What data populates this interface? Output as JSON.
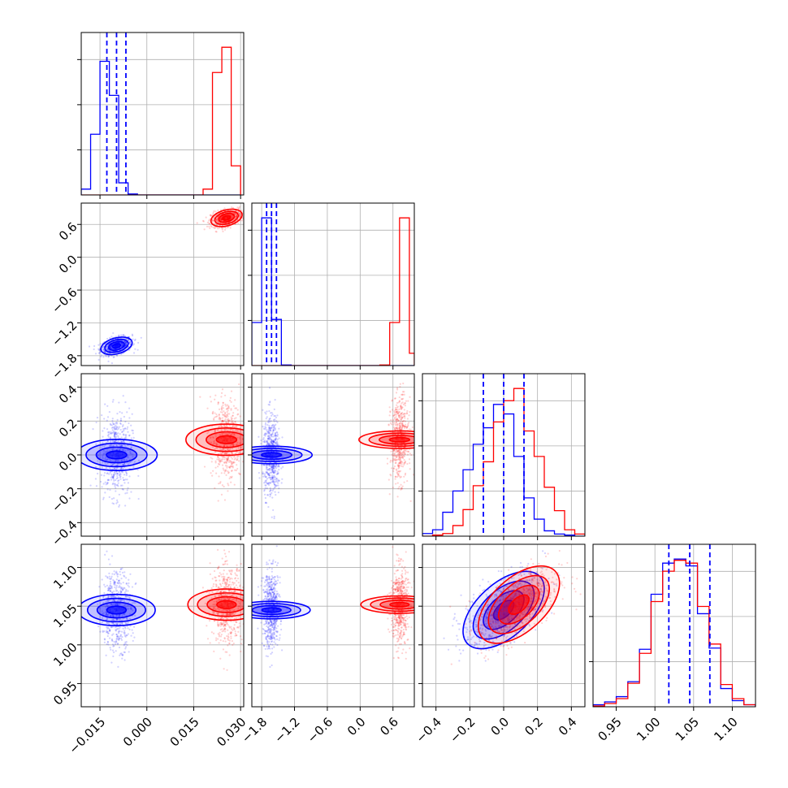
{
  "chart_data": {
    "type": "corner",
    "grid": true,
    "series": [
      {
        "color": "#0000ff"
      },
      {
        "color": "#ff0000"
      }
    ],
    "params": [
      {
        "range": [
          -0.021,
          0.031
        ],
        "ticks": [
          "−0.015",
          "0.000",
          "0.015",
          "0.030"
        ],
        "tick_values": [
          -0.015,
          0.0,
          0.015,
          0.03
        ]
      },
      {
        "range": [
          -1.98,
          0.99
        ],
        "ticks": [
          "−1.8",
          "−1.2",
          "−0.6",
          "0.0",
          "0.6"
        ],
        "tick_values": [
          -1.8,
          -1.2,
          -0.6,
          0.0,
          0.6
        ]
      },
      {
        "range": [
          -0.48,
          0.48
        ],
        "ticks": [
          "−0.4",
          "−0.2",
          "0.0",
          "0.2",
          "0.4"
        ],
        "tick_values": [
          -0.4,
          -0.2,
          0.0,
          0.2,
          0.4
        ]
      },
      {
        "range": [
          0.92,
          1.13
        ],
        "ticks": [
          "0.95",
          "1.00",
          "1.05",
          "1.10"
        ],
        "tick_values": [
          0.95,
          1.0,
          1.05,
          1.1
        ]
      }
    ],
    "quantile_lines": [
      [
        -0.0128,
        -0.0097,
        -0.0067
      ],
      [
        -1.71,
        -1.62,
        -1.53
      ],
      [
        -0.12,
        0.0,
        0.12
      ],
      [
        1.018,
        1.045,
        1.071
      ]
    ],
    "histograms": [
      {
        "edges": [
          -0.021,
          -0.018,
          -0.015,
          -0.012,
          -0.009,
          -0.006,
          -0.003,
          0.0,
          0.003,
          0.006,
          0.009,
          0.012,
          0.015,
          0.018,
          0.021,
          0.024,
          0.027,
          0.03
        ],
        "counts": {
          "blue": [
            0.12,
            1.25,
            2.75,
            2.05,
            0.25,
            0.02,
            0,
            0,
            0,
            0,
            0,
            0,
            0,
            0,
            0,
            0,
            0
          ],
          "red": [
            0,
            0,
            0,
            0,
            0,
            0,
            0,
            0,
            0,
            0,
            0,
            0,
            0,
            0.12,
            2.52,
            3.04,
            0.6
          ]
        }
      },
      {
        "edges": [
          -1.98,
          -1.8,
          -1.62,
          -1.44,
          -1.26,
          -1.08,
          -0.9,
          -0.72,
          -0.54,
          -0.36,
          -0.18,
          0.0,
          0.18,
          0.36,
          0.54,
          0.72,
          0.9,
          0.99
        ],
        "counts": {
          "blue": [
            1.4,
            4.8,
            1.5,
            0.02,
            0,
            0,
            0,
            0,
            0,
            0,
            0,
            0,
            0,
            0,
            0,
            0,
            0
          ],
          "red": [
            0,
            0,
            0,
            0,
            0,
            0,
            0,
            0,
            0,
            0,
            0,
            0,
            0,
            0.02,
            1.4,
            4.8,
            0.4
          ]
        }
      },
      {
        "edges": [
          -0.48,
          -0.42,
          -0.36,
          -0.3,
          -0.24,
          -0.18,
          -0.12,
          -0.06,
          0.0,
          0.06,
          0.12,
          0.18,
          0.24,
          0.3,
          0.36,
          0.42,
          0.48
        ],
        "counts": {
          "blue": [
            0.05,
            0.12,
            0.45,
            0.85,
            1.25,
            1.73,
            2.04,
            2.48,
            2.3,
            1.5,
            0.72,
            0.32,
            0.1,
            0.04,
            0.02,
            0
          ],
          "red": [
            0,
            0.02,
            0.05,
            0.2,
            0.5,
            0.95,
            1.4,
            2.15,
            2.55,
            2.78,
            1.98,
            1.5,
            0.92,
            0.48,
            0.12,
            0.04
          ]
        }
      },
      {
        "edges": [
          0.92,
          0.935,
          0.95,
          0.965,
          0.98,
          0.995,
          1.01,
          1.025,
          1.04,
          1.055,
          1.07,
          1.085,
          1.1,
          1.115,
          1.13
        ],
        "counts": {
          "blue": [
            0.05,
            0.12,
            0.25,
            0.62,
            1.42,
            2.78,
            3.55,
            3.65,
            3.48,
            2.3,
            1.45,
            0.45,
            0.15,
            0.05
          ],
          "red": [
            0.02,
            0.08,
            0.2,
            0.58,
            1.32,
            2.6,
            3.35,
            3.62,
            3.55,
            2.48,
            1.55,
            0.55,
            0.2,
            0.05
          ]
        }
      }
    ],
    "scatter_clouds": [
      {
        "row": 1,
        "col": 0,
        "blue": {
          "mean": [
            -0.0097,
            -1.62
          ],
          "sd": [
            0.0025,
            0.08
          ],
          "rho": 0.35
        },
        "red": {
          "mean": [
            0.0255,
            0.72
          ],
          "sd": [
            0.0025,
            0.08
          ],
          "rho": 0.35
        }
      },
      {
        "row": 2,
        "col": 0,
        "blue": {
          "mean": [
            -0.0097,
            0.0
          ],
          "sd": [
            0.0025,
            0.12
          ],
          "rho": 0.0
        },
        "red": {
          "mean": [
            0.0255,
            0.09
          ],
          "sd": [
            0.0025,
            0.12
          ],
          "rho": 0.0
        }
      },
      {
        "row": 2,
        "col": 1,
        "blue": {
          "mean": [
            -1.62,
            0.0
          ],
          "sd": [
            0.08,
            0.12
          ],
          "rho": 0.0
        },
        "red": {
          "mean": [
            0.72,
            0.09
          ],
          "sd": [
            0.08,
            0.12
          ],
          "rho": 0.0
        }
      },
      {
        "row": 3,
        "col": 0,
        "blue": {
          "mean": [
            -0.0097,
            1.045
          ],
          "sd": [
            0.0025,
            0.025
          ],
          "rho": 0.0
        },
        "red": {
          "mean": [
            0.0255,
            1.052
          ],
          "sd": [
            0.0025,
            0.025
          ],
          "rho": 0.0
        }
      },
      {
        "row": 3,
        "col": 1,
        "blue": {
          "mean": [
            -1.62,
            1.045
          ],
          "sd": [
            0.08,
            0.025
          ],
          "rho": 0.0
        },
        "red": {
          "mean": [
            0.72,
            1.052
          ],
          "sd": [
            0.08,
            0.025
          ],
          "rho": 0.0
        }
      },
      {
        "row": 3,
        "col": 2,
        "blue": {
          "mean": [
            0.0,
            1.045
          ],
          "sd": [
            0.12,
            0.025
          ],
          "rho": 0.55
        },
        "red": {
          "mean": [
            0.09,
            1.052
          ],
          "sd": [
            0.12,
            0.025
          ],
          "rho": 0.55
        }
      }
    ]
  }
}
